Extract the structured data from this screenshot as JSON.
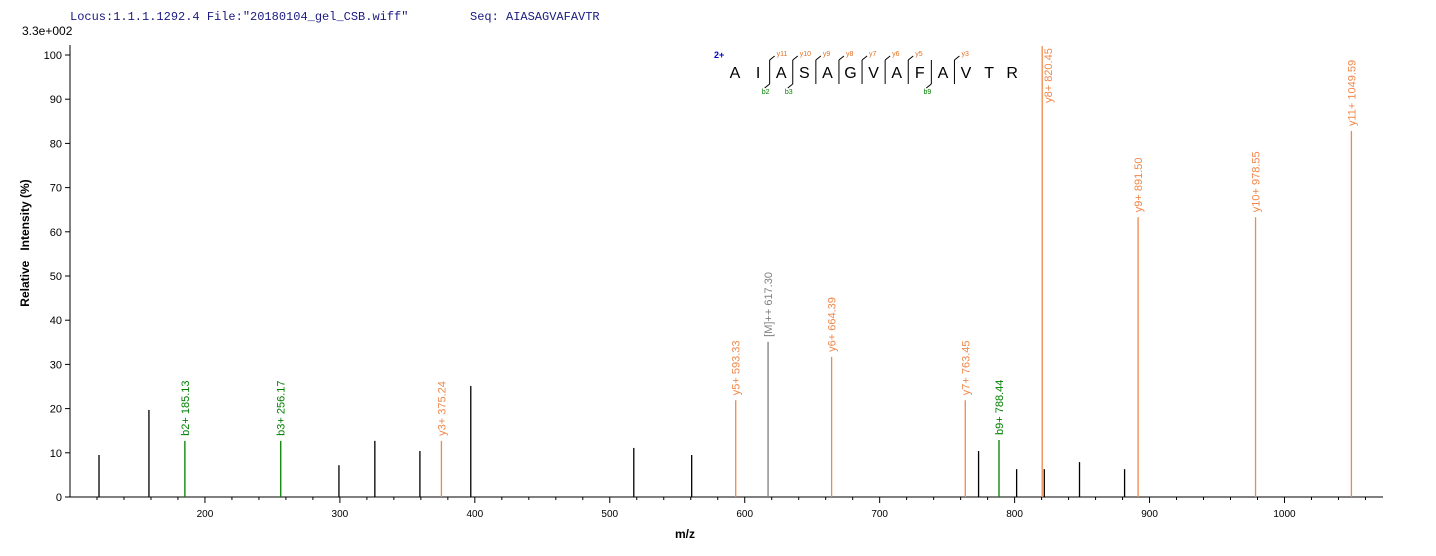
{
  "chart_data": {
    "type": "stem",
    "header": "Locus:1.1.1.1292.4 File:\"20180104_gel_CSB.wiff\"",
    "sequence_label": "Seq: AIASAGVAFAVTR",
    "scale_label": "3.3e+002",
    "y_label": "Relative   Intensity (%)",
    "x_label": "m/z",
    "xlim": [
      100,
      1073
    ],
    "ylim": [
      0,
      100
    ],
    "xticks": [
      200,
      300,
      400,
      500,
      600,
      700,
      800,
      900,
      1000
    ],
    "xminorticks": [
      120,
      140,
      160,
      180,
      220,
      240,
      260,
      280,
      320,
      340,
      360,
      380,
      420,
      440,
      460,
      480,
      520,
      540,
      560,
      580,
      620,
      640,
      660,
      680,
      720,
      740,
      760,
      780,
      820,
      840,
      860,
      880,
      920,
      940,
      960,
      980,
      1020,
      1040,
      1060
    ],
    "yticks": [
      0,
      10,
      20,
      30,
      40,
      50,
      60,
      70,
      80,
      90,
      100
    ],
    "series": [
      {
        "color": "#000000",
        "x": [
          121.5,
          158.5,
          299.3,
          325.9,
          359.3,
          397,
          517.8,
          560.7,
          773.3,
          801.5,
          822,
          848.1,
          881.5
        ],
        "values": [
          9.5,
          19.7,
          7.2,
          12.7,
          10.4,
          25.1,
          11.1,
          9.5,
          10.4,
          6.3,
          6.3,
          7.9,
          6.3
        ]
      },
      {
        "color": "#008000",
        "x": [
          185.13,
          256.17,
          788.44
        ],
        "values": [
          12.7,
          12.7,
          12.9
        ],
        "labels": [
          "b2+ 185.13",
          "b3+ 256.17",
          "b9+ 788.44"
        ]
      },
      {
        "color": "#808080",
        "x": [
          617.3
        ],
        "values": [
          35.1
        ],
        "labels": [
          "[M]++ 617.30"
        ]
      },
      {
        "color": "#f0884a",
        "x": [
          375.24,
          593.33,
          664.39,
          763.45,
          820.45,
          891.5,
          978.55,
          1049.59
        ],
        "values": [
          12.7,
          21.9,
          31.7,
          21.9,
          102,
          63.3,
          63.3,
          82.8
        ],
        "labels": [
          "y3+ 375.24",
          "y5+ 593.33",
          "y6+ 664.39",
          "y7+ 763.45",
          "y8+ 820.45",
          "y9+ 891.50",
          "y10+ 978.55",
          "y11+ 1049.59"
        ]
      }
    ],
    "sequence": {
      "charge": "2+",
      "residues": [
        "A",
        "I",
        "A",
        "S",
        "A",
        "G",
        "V",
        "A",
        "F",
        "A",
        "V",
        "T",
        "R"
      ],
      "y_ions": [
        null,
        "y11",
        "y10",
        "y9",
        "y8",
        "y7",
        "y6",
        "y5",
        null,
        "y3",
        null,
        null
      ],
      "b_ions": [
        null,
        "b2",
        "b3",
        null,
        null,
        null,
        null,
        null,
        "b9",
        null,
        null,
        null
      ]
    }
  }
}
